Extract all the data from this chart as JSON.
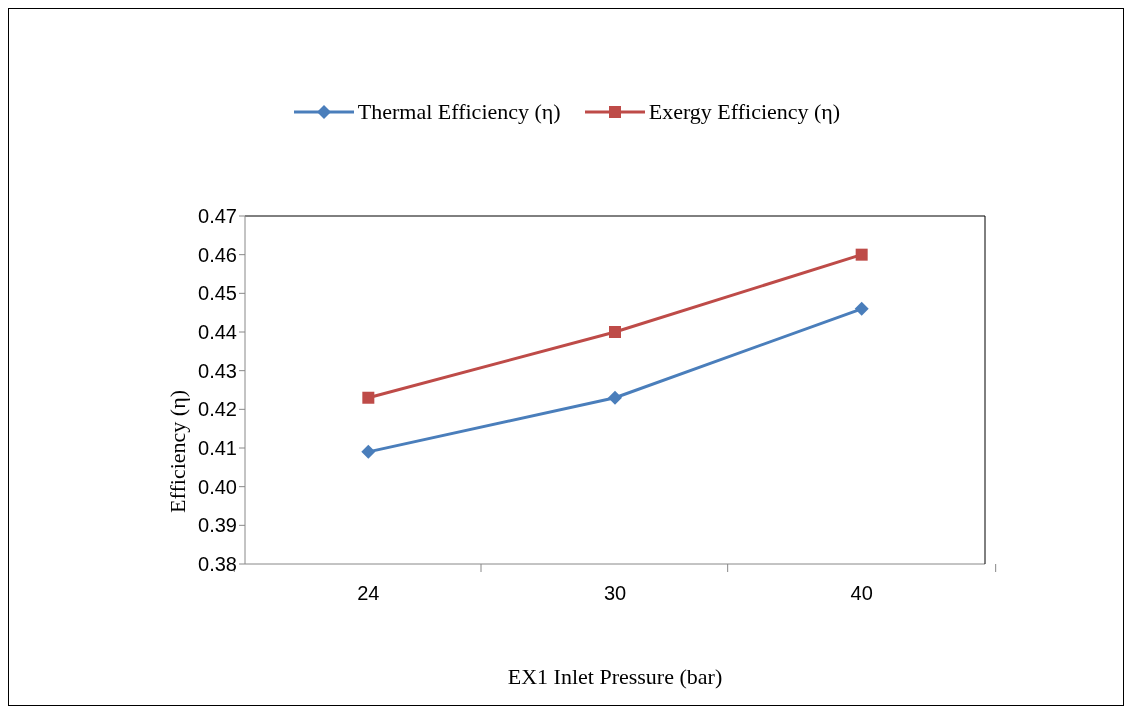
{
  "chart_data": {
    "type": "line",
    "xlabel": "EX1 Inlet Pressure (bar)",
    "ylabel": "Efficiency   (η)",
    "categories": [
      "24",
      "30",
      "40"
    ],
    "series": [
      {
        "name": "Thermal Efficiency (η)",
        "color": "#4a7ebb",
        "marker": "diamond",
        "values": [
          0.409,
          0.423,
          0.446
        ]
      },
      {
        "name": "Exergy Efficiency (η)",
        "color": "#be4b48",
        "marker": "square",
        "values": [
          0.423,
          0.44,
          0.46
        ]
      }
    ],
    "ylim": [
      0.38,
      0.47
    ],
    "yticks": [
      0.38,
      0.39,
      {
        "value": 0.4,
        "label": "0.40"
      },
      0.41,
      0.42,
      0.43,
      0.44,
      0.45,
      0.46,
      0.47
    ],
    "grid": false,
    "legend": "top",
    "line_style": "solid"
  }
}
